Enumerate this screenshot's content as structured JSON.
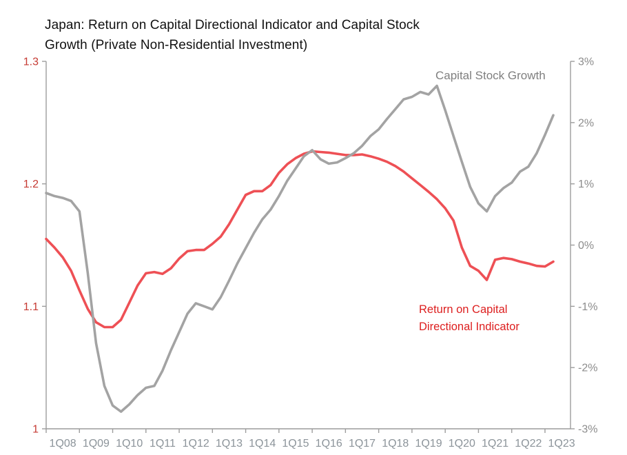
{
  "title": {
    "line1": "Japan: Return on Capital Directional Indicator and Capital Stock",
    "line2": "Growth (Private Non-Residential Investment)"
  },
  "annotations": {
    "gray_series_label": "Capital Stock Growth",
    "red_series_label_line1": "Return on Capital",
    "red_series_label_line2": "Directional Indicator"
  },
  "chart_data": {
    "type": "line",
    "title": "Japan: Return on Capital Directional Indicator and Capital Stock Growth (Private Non-Residential Investment)",
    "grid": false,
    "legend": "inline-text-labels",
    "categories": [
      "1Q08",
      "2Q08",
      "3Q08",
      "4Q08",
      "1Q09",
      "2Q09",
      "3Q09",
      "4Q09",
      "1Q10",
      "2Q10",
      "3Q10",
      "4Q10",
      "1Q11",
      "2Q11",
      "3Q11",
      "4Q11",
      "1Q12",
      "2Q12",
      "3Q12",
      "4Q12",
      "1Q13",
      "2Q13",
      "3Q13",
      "4Q13",
      "1Q14",
      "2Q14",
      "3Q14",
      "4Q14",
      "1Q15",
      "2Q15",
      "3Q15",
      "4Q15",
      "1Q16",
      "2Q16",
      "3Q16",
      "4Q16",
      "1Q17",
      "2Q17",
      "3Q17",
      "4Q17",
      "1Q18",
      "2Q18",
      "3Q18",
      "4Q18",
      "1Q19",
      "2Q19",
      "3Q19",
      "4Q19",
      "1Q20",
      "2Q20",
      "3Q20",
      "4Q20",
      "1Q21",
      "2Q21",
      "3Q21",
      "4Q21",
      "1Q22",
      "2Q22",
      "3Q22",
      "4Q22",
      "1Q23",
      "2Q23"
    ],
    "x_tick_labels": [
      "1Q08",
      "1Q09",
      "1Q10",
      "1Q11",
      "1Q12",
      "1Q13",
      "1Q14",
      "1Q15",
      "1Q16",
      "1Q17",
      "1Q18",
      "1Q19",
      "1Q20",
      "1Q21",
      "1Q22",
      "1Q23"
    ],
    "left_axis": {
      "min": 1.0,
      "max": 1.3,
      "tick_labels": [
        "1.3",
        "1.2",
        "1.1",
        "1"
      ],
      "tick_values": [
        1.3,
        1.2,
        1.1,
        1.0
      ],
      "label_color": "#c63a33"
    },
    "right_axis": {
      "min": -3,
      "max": 3,
      "tick_labels": [
        "3%",
        "2%",
        "1%",
        "0%",
        "-1%",
        "-2%",
        "-3%"
      ],
      "tick_values": [
        3,
        2,
        1,
        0,
        -1,
        -2,
        -3
      ],
      "label_color": "#8c8c8c"
    },
    "series": [
      {
        "name": "Return on Capital Directional Indicator",
        "axis": "left",
        "color": "#ee5055",
        "values": [
          1.155,
          1.148,
          1.14,
          1.129,
          1.113,
          1.098,
          1.087,
          1.083,
          1.083,
          1.089,
          1.103,
          1.117,
          1.127,
          1.128,
          1.1265,
          1.131,
          1.139,
          1.145,
          1.146,
          1.146,
          1.151,
          1.157,
          1.167,
          1.179,
          1.191,
          1.194,
          1.194,
          1.199,
          1.209,
          1.216,
          1.221,
          1.2245,
          1.2265,
          1.226,
          1.2255,
          1.2245,
          1.2235,
          1.2235,
          1.224,
          1.2225,
          1.2205,
          1.218,
          1.2145,
          1.21,
          1.2045,
          1.199,
          1.1935,
          1.1875,
          1.18,
          1.17,
          1.148,
          1.133,
          1.129,
          1.1215,
          1.138,
          1.1395,
          1.1385,
          1.1365,
          1.135,
          1.133,
          1.1325,
          1.1365
        ]
      },
      {
        "name": "Capital Stock Growth",
        "axis": "right",
        "color": "#a3a3a3",
        "values": [
          0.85,
          0.8,
          0.77,
          0.72,
          0.55,
          -0.45,
          -1.6,
          -2.3,
          -2.62,
          -2.72,
          -2.6,
          -2.45,
          -2.33,
          -2.3,
          -2.05,
          -1.72,
          -1.42,
          -1.12,
          -0.95,
          -1.0,
          -1.05,
          -0.85,
          -0.58,
          -0.3,
          -0.05,
          0.2,
          0.42,
          0.58,
          0.8,
          1.05,
          1.25,
          1.45,
          1.55,
          1.4,
          1.33,
          1.35,
          1.42,
          1.5,
          1.62,
          1.78,
          1.89,
          2.06,
          2.22,
          2.38,
          2.42,
          2.5,
          2.46,
          2.6,
          2.2,
          1.78,
          1.36,
          0.95,
          0.68,
          0.55,
          0.8,
          0.93,
          1.02,
          1.2,
          1.28,
          1.5,
          1.8,
          2.12
        ]
      }
    ],
    "axis_color": "#9c9c9c",
    "x_label_color": "#8c949a"
  }
}
